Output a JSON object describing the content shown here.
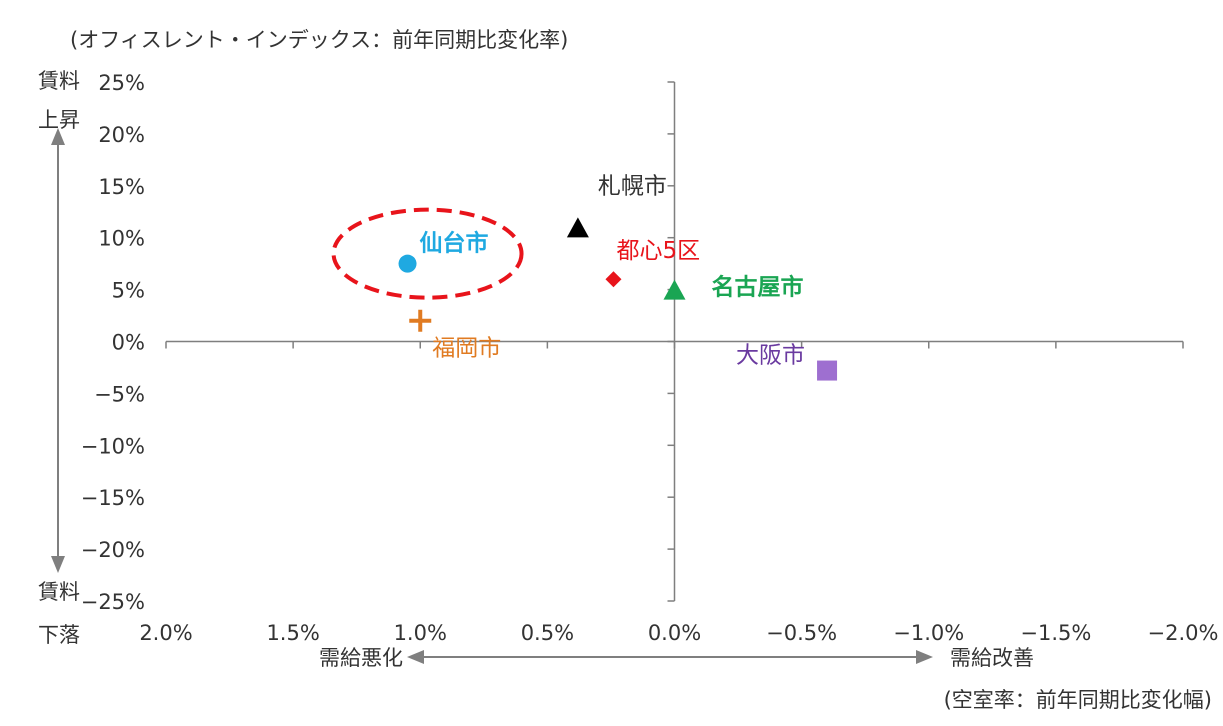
{
  "chart_data": {
    "type": "scatter",
    "ylabel": "(オフィスレント・インデックス：前年同期比変化率)",
    "xlabel": "(空室率：前年同期比変化幅)",
    "x_reversed": true,
    "xlim": [
      2.0,
      -2.0
    ],
    "ylim": [
      -25,
      25
    ],
    "x_ticks": [
      2.0,
      1.5,
      1.0,
      0.5,
      0.0,
      -0.5,
      -1.0,
      -1.5,
      -2.0
    ],
    "x_tick_labels": [
      "2.0%",
      "1.5%",
      "1.0%",
      "0.5%",
      "0.0%",
      "−0.5%",
      "−1.0%",
      "−1.5%",
      "−2.0%"
    ],
    "y_ticks": [
      25,
      20,
      15,
      10,
      5,
      0,
      -5,
      -10,
      -15,
      -20,
      -25
    ],
    "y_tick_labels": [
      "25%",
      "20%",
      "15%",
      "10%",
      "5%",
      "0%",
      "−5%",
      "−10%",
      "−15%",
      "−20%",
      "−25%"
    ],
    "grid": false,
    "points": [
      {
        "label": "仙台市",
        "x": 1.05,
        "y": 7.5,
        "marker": "circle",
        "color": "#1fa9e1",
        "bold": true
      },
      {
        "label": "札幌市",
        "x": 0.38,
        "y": 10.8,
        "marker": "triangle",
        "color": "#000000",
        "bold": false
      },
      {
        "label": "都心5区",
        "x": 0.24,
        "y": 6.0,
        "marker": "diamond",
        "color": "#e8141b",
        "bold": false
      },
      {
        "label": "名古屋市",
        "x": 0.0,
        "y": 4.8,
        "marker": "triangle",
        "color": "#1aa553",
        "bold": true
      },
      {
        "label": "福岡市",
        "x": 1.0,
        "y": 2.0,
        "marker": "plus",
        "color": "#e07b22",
        "bold": false
      },
      {
        "label": "大阪市",
        "x": -0.6,
        "y": -2.8,
        "marker": "square",
        "color": "#9e6fd0",
        "bold": false
      }
    ],
    "label_colors": {
      "仙台市": "#1fa9e1",
      "札幌市": "#333333",
      "都心5区": "#e8141b",
      "名古屋市": "#1aa553",
      "福岡市": "#e07b22",
      "大阪市": "#6a3aa0"
    },
    "highlight": {
      "target": "仙台市",
      "shape": "dashed-ellipse",
      "color": "#e8141b"
    },
    "annotations": {
      "y_top_1": "賃料",
      "y_top_2": "上昇",
      "y_bottom_1": "賃料",
      "y_bottom_2": "下落",
      "x_left": "需給悪化",
      "x_right": "需給改善"
    },
    "arrow_color": "#7f7f7f",
    "axis_color": "#7f7f7f"
  }
}
